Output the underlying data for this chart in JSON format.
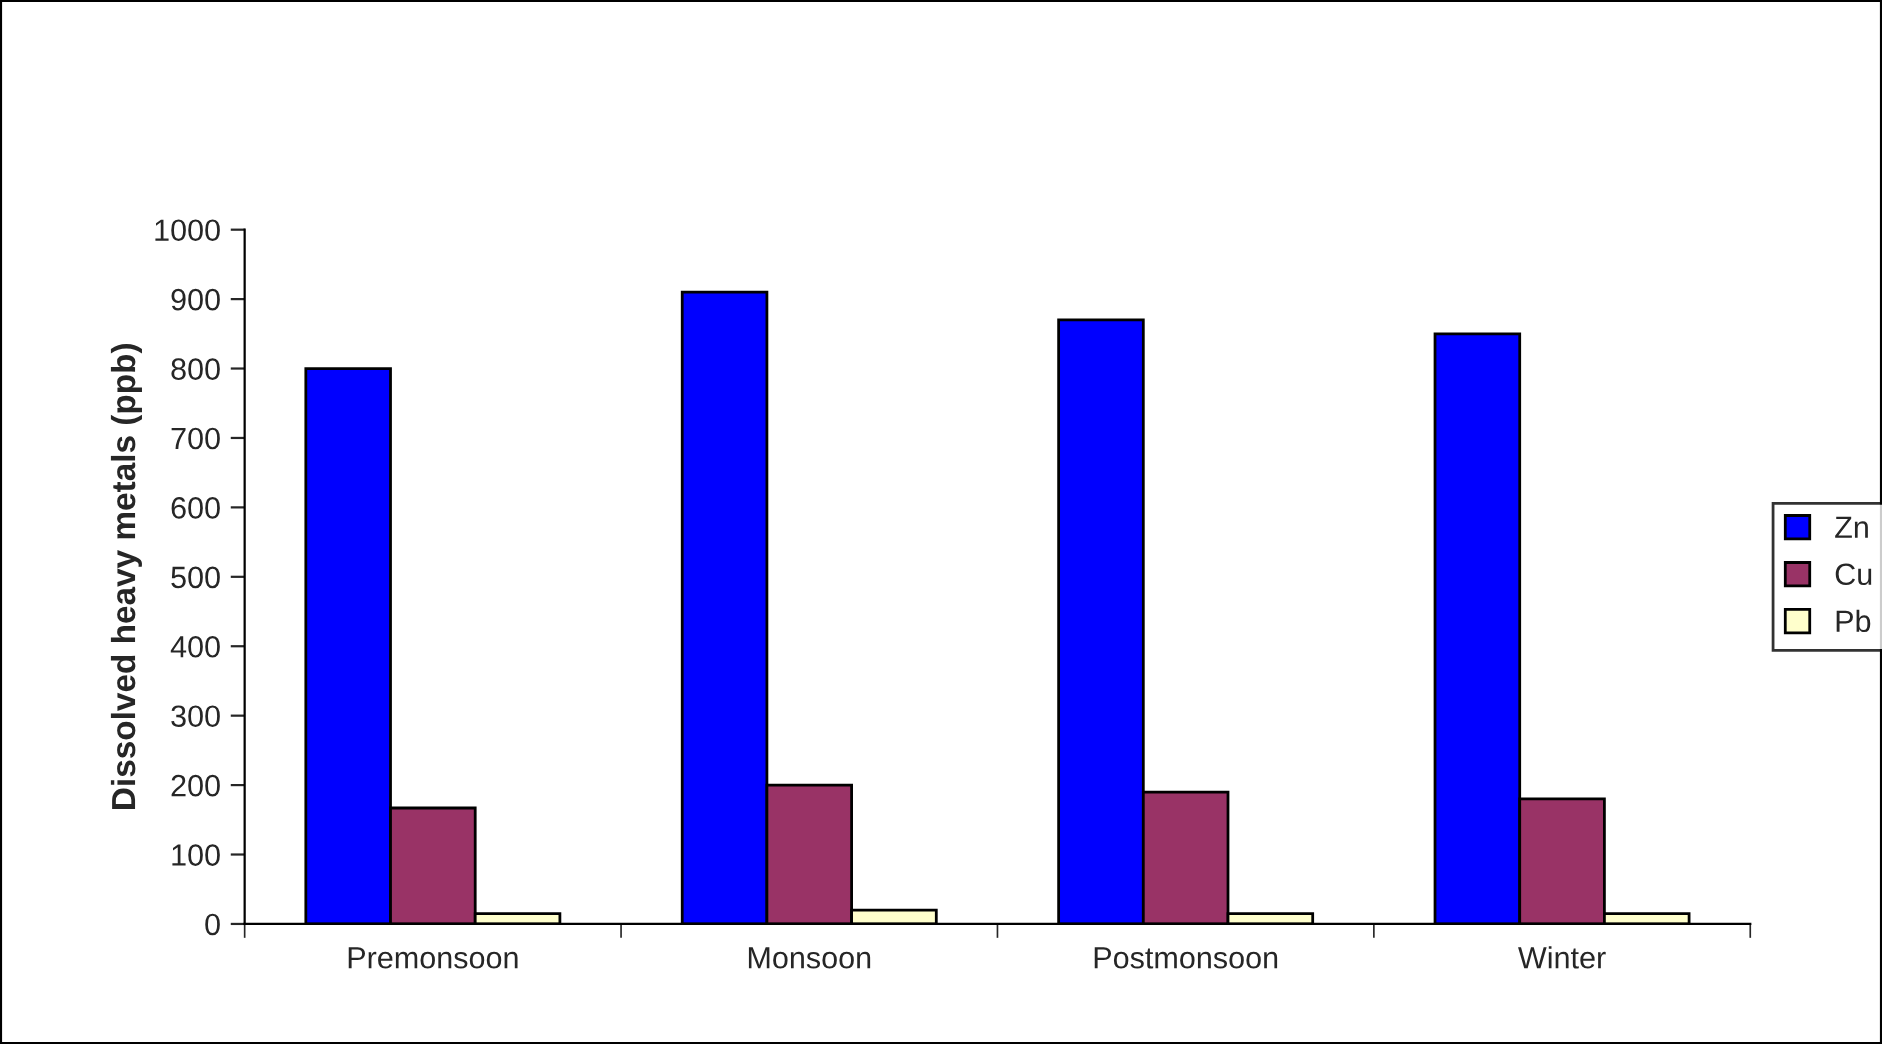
{
  "chart_data": {
    "type": "bar",
    "ylabel": "Dissolved heavy metals (ppb)",
    "categories": [
      "Premonsoon",
      "Monsoon",
      "Postmonsoon",
      "Winter"
    ],
    "series": [
      {
        "name": "Zn",
        "color": "#0000ff",
        "values": [
          800,
          910,
          870,
          850
        ]
      },
      {
        "name": "Cu",
        "color": "#993366",
        "values": [
          167,
          200,
          190,
          180
        ]
      },
      {
        "name": "Pb",
        "color": "#ffffcc",
        "values": [
          15,
          20,
          15,
          15
        ]
      }
    ],
    "ylim": [
      0,
      1000
    ],
    "yticks": [
      0,
      100,
      200,
      300,
      400,
      500,
      600,
      700,
      800,
      900,
      1000
    ],
    "grid": false,
    "legend": "right"
  }
}
